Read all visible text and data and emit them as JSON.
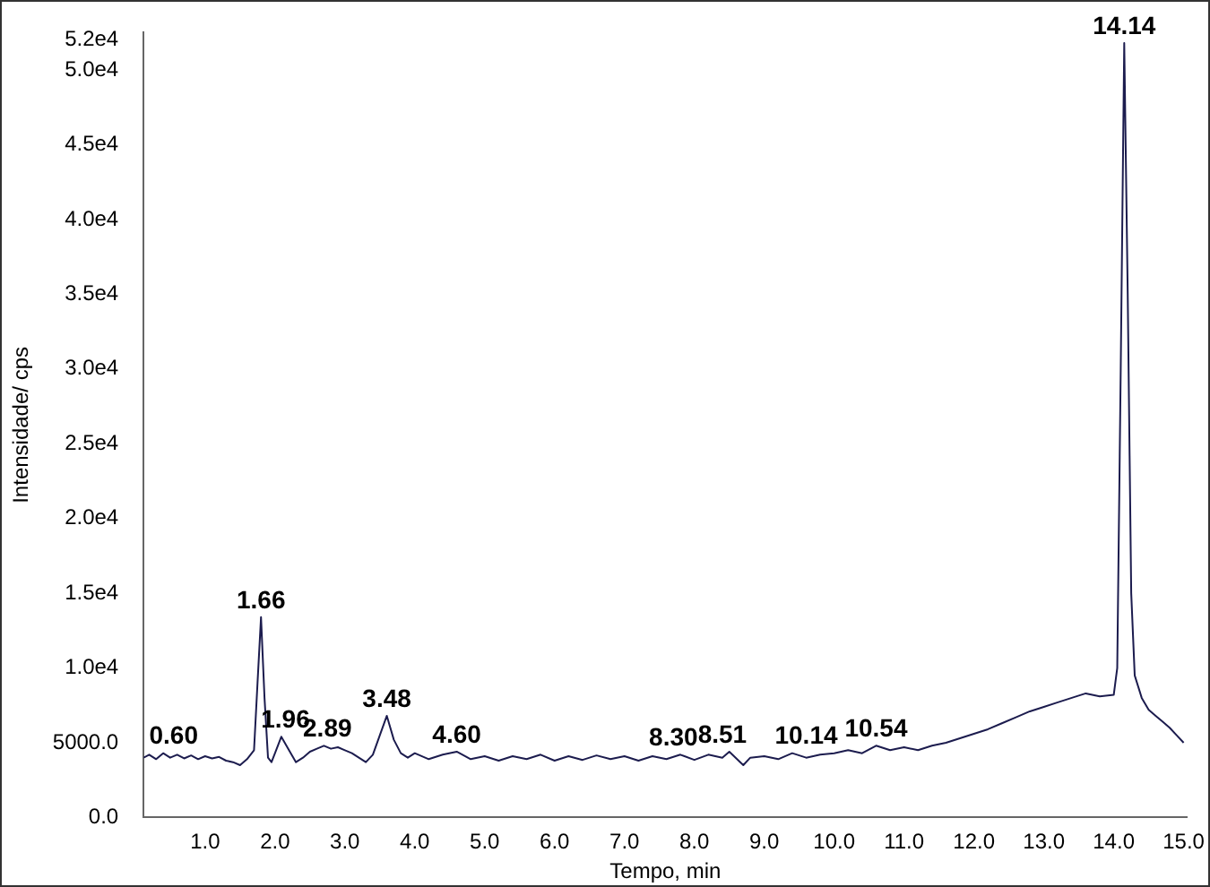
{
  "chart_data": {
    "type": "line",
    "xlabel": "Tempo, min",
    "ylabel": "Intensidade/ cps",
    "x": [
      0.12,
      0.2,
      0.3,
      0.4,
      0.5,
      0.6,
      0.7,
      0.8,
      0.9,
      1.0,
      1.1,
      1.2,
      1.3,
      1.4,
      1.5,
      1.6,
      1.7,
      1.75,
      1.8,
      1.85,
      1.9,
      1.95,
      2.0,
      2.09,
      2.2,
      2.3,
      2.4,
      2.5,
      2.6,
      2.7,
      2.8,
      2.9,
      3.0,
      3.1,
      3.2,
      3.3,
      3.4,
      3.5,
      3.6,
      3.7,
      3.8,
      3.9,
      4.0,
      4.2,
      4.4,
      4.6,
      4.8,
      5.0,
      5.2,
      5.4,
      5.6,
      5.8,
      6.0,
      6.2,
      6.4,
      6.6,
      6.8,
      7.0,
      7.2,
      7.4,
      7.6,
      7.8,
      8.0,
      8.2,
      8.4,
      8.5,
      8.7,
      8.8,
      9.0,
      9.2,
      9.4,
      9.6,
      9.8,
      10.0,
      10.2,
      10.4,
      10.6,
      10.8,
      11.0,
      11.2,
      11.4,
      11.6,
      11.8,
      12.0,
      12.2,
      12.4,
      12.6,
      12.8,
      13.0,
      13.2,
      13.4,
      13.6,
      13.8,
      14.0,
      14.05,
      14.1,
      14.15,
      14.2,
      14.25,
      14.3,
      14.4,
      14.5,
      14.6,
      14.7,
      14.8,
      14.9,
      15.0
    ],
    "series": [
      {
        "color": "#1c1c4e",
        "values": [
          4000,
          4200,
          3900,
          4300,
          4000,
          4200,
          3950,
          4150,
          3900,
          4100,
          3950,
          4050,
          3800,
          3700,
          3500,
          3900,
          4500,
          9000,
          13400,
          8000,
          4000,
          3700,
          4300,
          5400,
          4500,
          3700,
          4000,
          4400,
          4600,
          4800,
          4600,
          4700,
          4500,
          4300,
          4000,
          3700,
          4200,
          5500,
          6800,
          5200,
          4300,
          4000,
          4300,
          3900,
          4200,
          4400,
          3900,
          4100,
          3800,
          4100,
          3900,
          4200,
          3800,
          4100,
          3850,
          4150,
          3900,
          4100,
          3800,
          4100,
          3900,
          4200,
          3850,
          4200,
          4000,
          4400,
          3500,
          4000,
          4100,
          3900,
          4300,
          4000,
          4200,
          4300,
          4500,
          4300,
          4800,
          4500,
          4700,
          4500,
          4800,
          5000,
          5300,
          5600,
          5900,
          6300,
          6700,
          7100,
          7400,
          7700,
          8000,
          8300,
          8100,
          8200,
          10000,
          30000,
          51800,
          35000,
          15000,
          9500,
          8000,
          7200,
          6800,
          6400,
          6000,
          5500,
          5000
        ]
      }
    ],
    "xlim": [
      0.12,
      15.05
    ],
    "xticks": [
      {
        "value": 1,
        "label": "1.0"
      },
      {
        "value": 2,
        "label": "2.0"
      },
      {
        "value": 3,
        "label": "3.0"
      },
      {
        "value": 4,
        "label": "4.0"
      },
      {
        "value": 5,
        "label": "5.0"
      },
      {
        "value": 6,
        "label": "6.0"
      },
      {
        "value": 7,
        "label": "7.0"
      },
      {
        "value": 8,
        "label": "8.0"
      },
      {
        "value": 9,
        "label": "9.0"
      },
      {
        "value": 10,
        "label": "10.0"
      },
      {
        "value": 11,
        "label": "11.0"
      },
      {
        "value": 12,
        "label": "12.0"
      },
      {
        "value": 13,
        "label": "13.0"
      },
      {
        "value": 14,
        "label": "14.0"
      },
      {
        "value": 15,
        "label": "15.0"
      }
    ],
    "ylim": [
      0,
      52500
    ],
    "yticks": [
      {
        "value": 0,
        "label": "0.0"
      },
      {
        "value": 5000,
        "label": "5000.0"
      },
      {
        "value": 10000,
        "label": "1.0e4"
      },
      {
        "value": 15000,
        "label": "1.5e4"
      },
      {
        "value": 20000,
        "label": "2.0e4"
      },
      {
        "value": 25000,
        "label": "2.5e4"
      },
      {
        "value": 30000,
        "label": "3.0e4"
      },
      {
        "value": 35000,
        "label": "3.5e4"
      },
      {
        "value": 40000,
        "label": "4.0e4"
      },
      {
        "value": 45000,
        "label": "4.5e4"
      },
      {
        "value": 50000,
        "label": "5.0e4"
      },
      {
        "value": 52000,
        "label": "5.2e4"
      }
    ],
    "annotations": [
      {
        "text": "0.60",
        "x": 0.55,
        "y": 4300
      },
      {
        "text": "1.66",
        "x": 1.8,
        "y": 13400
      },
      {
        "text": "1.96",
        "x": 2.15,
        "y": 5400
      },
      {
        "text": "2.89",
        "x": 2.75,
        "y": 4800
      },
      {
        "text": "3.48",
        "x": 3.6,
        "y": 6800
      },
      {
        "text": "4.60",
        "x": 4.6,
        "y": 4400
      },
      {
        "text": "8.30",
        "x": 7.7,
        "y": 4200
      },
      {
        "text": "8.51",
        "x": 8.4,
        "y": 4400
      },
      {
        "text": "10.14",
        "x": 9.6,
        "y": 4300
      },
      {
        "text": "10.54",
        "x": 10.6,
        "y": 4800
      },
      {
        "text": "14.14",
        "x": 14.15,
        "y": 51800
      }
    ],
    "grid": false,
    "legend": false,
    "marker": "none",
    "line_style": "solid"
  }
}
